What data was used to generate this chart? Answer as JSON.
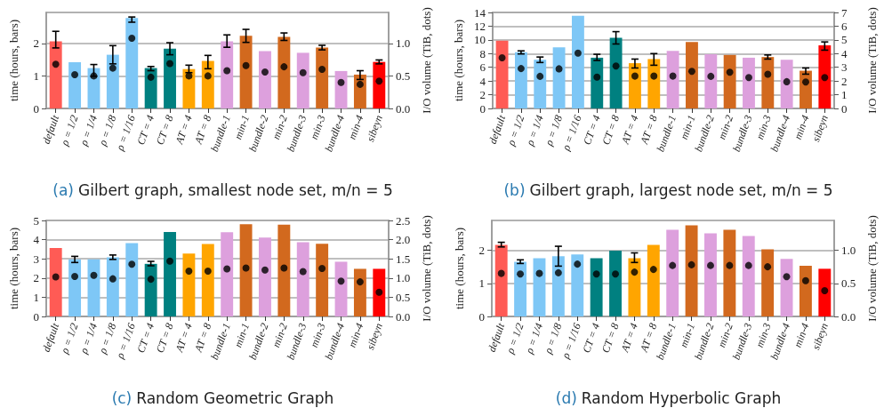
{
  "chart_data": [
    {
      "type": "bar",
      "title": "(a) Gilbert graph, smallest node set, m/n = 5",
      "ylabel": "time (hours, bars)",
      "y2label": "I/O volume (TiB, dots)",
      "grid": "y",
      "categories": [
        "default",
        "ρ = 1/2",
        "ρ = 1/4",
        "ρ = 1/8",
        "ρ = 1/16",
        "CT = 4",
        "CT = 8",
        "AT = 4",
        "AT = 8",
        "bundle-1",
        "min-1",
        "bundle-2",
        "min-2",
        "bundle-3",
        "min-3",
        "bundle-4",
        "min-4",
        "sibeyn"
      ],
      "ylim": [
        0,
        2.95
      ],
      "yticks": [
        0,
        1,
        2
      ],
      "y2lim": [
        0,
        1.475
      ],
      "y2ticks": [
        {
          "value": 0,
          "label": "0.0"
        },
        {
          "value": 0.5,
          "label": "0.5"
        },
        {
          "value": 1,
          "label": "1.0"
        }
      ],
      "series": [
        {
          "type": "bar",
          "colors": [
            "#ff5b55",
            "#7ec7f6",
            "#7ec7f6",
            "#7ec7f6",
            "#7ec7f6",
            "#008080",
            "#008080",
            "#ffa500",
            "#ffa500",
            "#dda0dd",
            "#d2691e",
            "#dda0dd",
            "#d2691e",
            "#dda0dd",
            "#d2691e",
            "#dda0dd",
            "#d2691e",
            "#ff0000"
          ],
          "values": [
            2.06,
            1.42,
            1.24,
            1.65,
            2.78,
            1.24,
            1.84,
            1.21,
            1.46,
            2.06,
            2.23,
            1.76,
            2.2,
            1.71,
            1.87,
            1.15,
            1.04,
            1.43
          ],
          "errors": [
            [
              1.86,
              2.37
            ],
            null,
            [
              0.99,
              1.35
            ],
            [
              1.37,
              1.93
            ],
            [
              2.65,
              2.81
            ],
            [
              1.16,
              1.29
            ],
            [
              1.65,
              2.02
            ],
            [
              1.1,
              1.33
            ],
            [
              1.22,
              1.63
            ],
            [
              1.88,
              2.26
            ],
            [
              2.03,
              2.43
            ],
            null,
            [
              2.09,
              2.32
            ],
            null,
            [
              1.8,
              1.94
            ],
            null,
            [
              0.89,
              1.16
            ],
            [
              1.37,
              1.49
            ]
          ]
        },
        {
          "type": "scatter",
          "axis": "y2",
          "color": "#000000",
          "marker": "circle",
          "values": [
            0.68,
            0.52,
            0.5,
            0.62,
            1.08,
            0.48,
            0.69,
            0.5,
            0.5,
            0.58,
            0.66,
            0.56,
            0.64,
            0.55,
            0.6,
            0.4,
            0.37,
            0.42
          ]
        }
      ]
    },
    {
      "type": "bar",
      "title": "(b) Gilbert graph, largest node set, m/n = 5",
      "ylabel": "time (hours, bars)",
      "y2label": "I/O volume (TiB, dots)",
      "grid": "y",
      "categories": [
        "default",
        "ρ = 1/2",
        "ρ = 1/4",
        "ρ = 1/8",
        "ρ = 1/16",
        "CT = 4",
        "CT = 8",
        "AT = 4",
        "AT = 8",
        "bundle-1",
        "min-1",
        "bundle-2",
        "min-2",
        "bundle-3",
        "min-3",
        "bundle-4",
        "min-4",
        "sibeyn"
      ],
      "ylim": [
        0,
        14
      ],
      "yticks": [
        0,
        2,
        4,
        6,
        8,
        10,
        12,
        14
      ],
      "y2lim": [
        0,
        7
      ],
      "y2ticks": [
        0,
        1,
        2,
        3,
        4,
        5,
        6,
        7
      ],
      "series": [
        {
          "type": "bar",
          "colors": [
            "#ff5b55",
            "#7ec7f6",
            "#7ec7f6",
            "#7ec7f6",
            "#7ec7f6",
            "#008080",
            "#008080",
            "#ffa500",
            "#ffa500",
            "#dda0dd",
            "#d2691e",
            "#dda0dd",
            "#d2691e",
            "#dda0dd",
            "#d2691e",
            "#dda0dd",
            "#d2691e",
            "#ff0000"
          ],
          "values": [
            9.9,
            8.2,
            7.1,
            8.9,
            13.5,
            7.4,
            10.3,
            6.6,
            7.2,
            8.4,
            9.7,
            7.9,
            7.8,
            7.4,
            7.5,
            7.1,
            5.5,
            9.2
          ],
          "errors": [
            null,
            [
              7.95,
              8.4
            ],
            [
              6.7,
              7.5
            ],
            null,
            null,
            [
              7,
              7.9
            ],
            [
              9.4,
              11.2
            ],
            [
              5.9,
              7.2
            ],
            [
              6.3,
              8
            ],
            null,
            null,
            null,
            null,
            null,
            [
              7.2,
              7.8
            ],
            null,
            [
              5,
              5.9
            ],
            [
              8.5,
              9.7
            ]
          ]
        },
        {
          "type": "scatter",
          "axis": "y2",
          "color": "#000000",
          "marker": "circle",
          "values": [
            3.69,
            2.91,
            2.34,
            2.89,
            4.04,
            2.29,
            3.1,
            2.36,
            2.36,
            2.36,
            2.71,
            2.34,
            2.64,
            2.25,
            2.5,
            1.95,
            1.93,
            2.25
          ]
        }
      ]
    },
    {
      "type": "bar",
      "title": "(c) Random Geometric Graph",
      "ylabel": "time (hours, bars)",
      "y2label": "I/O volume (TiB, dots)",
      "grid": "y",
      "categories": [
        "default",
        "ρ = 1/2",
        "ρ = 1/4",
        "ρ = 1/8",
        "ρ = 1/16",
        "CT = 4",
        "CT = 8",
        "AT = 4",
        "AT = 8",
        "bundle-1",
        "min-1",
        "bundle-2",
        "min-2",
        "bundle-3",
        "min-3",
        "bundle-4",
        "min-4",
        "sibeyn"
      ],
      "ylim": [
        0,
        5
      ],
      "yticks": [
        0,
        1,
        2,
        3,
        4,
        5
      ],
      "y2lim": [
        0,
        2.5
      ],
      "y2ticks": [
        {
          "value": 0,
          "label": "0.0"
        },
        {
          "value": 0.5,
          "label": "0.5"
        },
        {
          "value": 1,
          "label": "1.0"
        },
        {
          "value": 1.5,
          "label": "1.5"
        },
        {
          "value": 2,
          "label": "2.0"
        },
        {
          "value": 2.5,
          "label": "2.5"
        }
      ],
      "series": [
        {
          "type": "bar",
          "colors": [
            "#ff5b55",
            "#7ec7f6",
            "#7ec7f6",
            "#7ec7f6",
            "#7ec7f6",
            "#008080",
            "#008080",
            "#ffa500",
            "#ffa500",
            "#dda0dd",
            "#d2691e",
            "#dda0dd",
            "#d2691e",
            "#dda0dd",
            "#d2691e",
            "#dda0dd",
            "#d2691e",
            "#ff0000"
          ],
          "values": [
            3.56,
            2.97,
            2.97,
            3.08,
            3.82,
            2.74,
            4.4,
            3.28,
            3.77,
            4.39,
            4.8,
            4.11,
            4.78,
            3.87,
            3.78,
            2.85,
            2.48,
            2.48
          ],
          "errors": [
            null,
            [
              2.81,
              3.13
            ],
            null,
            [
              2.97,
              3.2
            ],
            null,
            [
              2.64,
              2.87
            ],
            null,
            null,
            null,
            null,
            null,
            null,
            null,
            null,
            null,
            null,
            null,
            null
          ]
        },
        {
          "type": "scatter",
          "axis": "y2",
          "color": "#000000",
          "marker": "circle",
          "values": [
            1.03,
            1.04,
            1.07,
            0.98,
            1.36,
            0.97,
            1.44,
            1.18,
            1.18,
            1.24,
            1.26,
            1.21,
            1.26,
            1.17,
            1.25,
            0.92,
            0.9,
            0.63
          ]
        }
      ]
    },
    {
      "type": "bar",
      "title": "(d) Random Hyperbolic Graph",
      "ylabel": "time (hours, bars)",
      "y2label": "I/O volume (TiB, dots)",
      "grid": "y",
      "categories": [
        "default",
        "ρ = 1/2",
        "ρ = 1/4",
        "ρ = 1/8",
        "ρ = 1/16",
        "CT = 4",
        "CT = 8",
        "AT = 4",
        "AT = 8",
        "bundle-1",
        "min-1",
        "bundle-2",
        "min-2",
        "bundle-3",
        "min-3",
        "bundle-4",
        "min-4",
        "sibeyn"
      ],
      "ylim": [
        0,
        2.9
      ],
      "yticks": [
        0,
        1,
        2
      ],
      "y2lim": [
        0,
        1.45
      ],
      "y2ticks": [
        {
          "value": 0,
          "label": "0.0"
        },
        {
          "value": 0.5,
          "label": "0.5"
        },
        {
          "value": 1,
          "label": "1.0"
        }
      ],
      "series": [
        {
          "type": "bar",
          "colors": [
            "#ff5b55",
            "#7ec7f6",
            "#7ec7f6",
            "#7ec7f6",
            "#7ec7f6",
            "#008080",
            "#008080",
            "#ffa500",
            "#ffa500",
            "#dda0dd",
            "#d2691e",
            "#dda0dd",
            "#d2691e",
            "#dda0dd",
            "#d2691e",
            "#dda0dd",
            "#d2691e",
            "#ff0000"
          ],
          "values": [
            2.16,
            1.65,
            1.76,
            1.82,
            1.87,
            1.76,
            1.99,
            1.76,
            2.16,
            2.62,
            2.75,
            2.51,
            2.62,
            2.43,
            2.03,
            1.74,
            1.53,
            1.44
          ],
          "errors": [
            [
              2.1,
              2.24
            ],
            [
              1.6,
              1.71
            ],
            null,
            [
              1.52,
              2.12
            ],
            null,
            null,
            null,
            [
              1.63,
              1.92
            ],
            null,
            null,
            null,
            null,
            null,
            null,
            null,
            null,
            null,
            null
          ]
        },
        {
          "type": "scatter",
          "axis": "y2",
          "color": "#000000",
          "marker": "circle",
          "values": [
            0.65,
            0.64,
            0.65,
            0.66,
            0.79,
            0.64,
            0.64,
            0.67,
            0.71,
            0.77,
            0.78,
            0.77,
            0.77,
            0.77,
            0.75,
            0.6,
            0.54,
            0.39
          ]
        }
      ]
    }
  ]
}
